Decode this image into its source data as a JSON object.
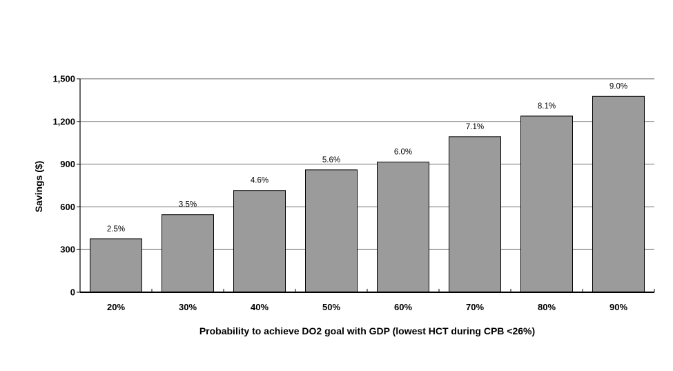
{
  "chart_data": {
    "type": "bar",
    "title": "",
    "xlabel": "Probability to achieve DO2 goal with GDP (lowest HCT during CPB <26%)",
    "ylabel": "Savings ($)",
    "categories": [
      "20%",
      "30%",
      "40%",
      "50%",
      "60%",
      "70%",
      "80%",
      "90%"
    ],
    "values": [
      375,
      545,
      715,
      860,
      915,
      1093,
      1238,
      1377
    ],
    "data_labels": [
      "2.5%",
      "3.5%",
      "4.6%",
      "5.6%",
      "6.0%",
      "7.1%",
      "8.1%",
      "9.0%"
    ],
    "ylim": [
      0,
      1500
    ],
    "yticks": [
      0,
      300,
      600,
      900,
      1200,
      1500
    ],
    "ytick_labels": [
      "0",
      "300",
      "600",
      "900",
      "1,200",
      "1,500"
    ],
    "grid": "horizontal",
    "legend": "none",
    "colors": {
      "bar": "#9b9b9b",
      "bar_stroke": "#000000",
      "grid": "#555555"
    }
  }
}
